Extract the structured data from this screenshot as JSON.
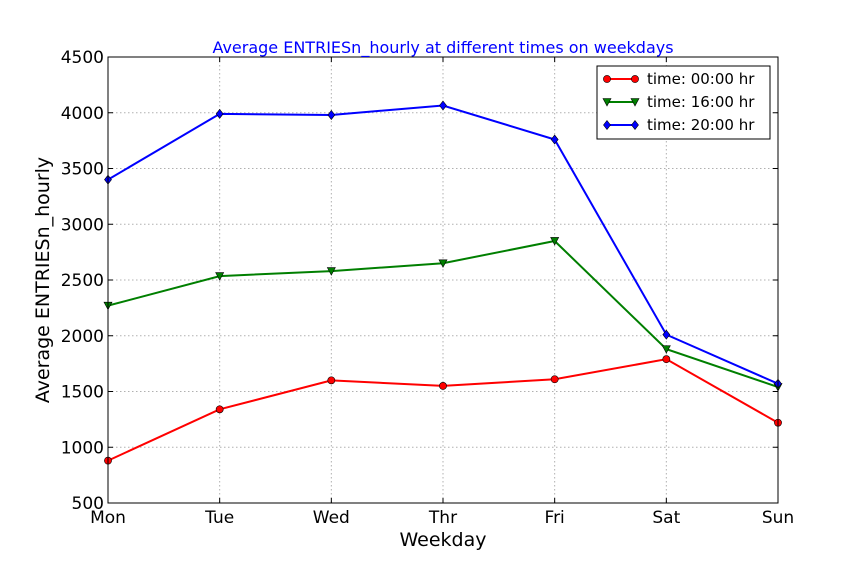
{
  "chart_data": {
    "type": "line",
    "title": "Average ENTRIESn_hourly at different times on weekdays",
    "title_color": "#0000ff",
    "xlabel": "Weekday",
    "ylabel": "Average ENTRIESn_hourly",
    "categories": [
      "Mon",
      "Tue",
      "Wed",
      "Thr",
      "Fri",
      "Sat",
      "Sun"
    ],
    "ylim": [
      500,
      4500
    ],
    "yticks": [
      "500",
      "1000",
      "1500",
      "2000",
      "2500",
      "3000",
      "3500",
      "4000",
      "4500"
    ],
    "ytick_values": [
      500,
      1000,
      1500,
      2000,
      2500,
      3000,
      3500,
      4000,
      4500
    ],
    "grid": true,
    "legend_position": "top-right",
    "series": [
      {
        "name": "time: 00:00 hr",
        "color": "#ff0000",
        "marker": "circle",
        "values": [
          880,
          1340,
          1600,
          1550,
          1610,
          1790,
          1220
        ]
      },
      {
        "name": "time: 16:00 hr",
        "color": "#007f00",
        "marker": "triangle-down",
        "values": [
          2270,
          2535,
          2580,
          2650,
          2850,
          1880,
          1540
        ]
      },
      {
        "name": "time: 20:00 hr",
        "color": "#0000ff",
        "marker": "diamond",
        "values": [
          3400,
          3990,
          3980,
          4065,
          3760,
          2010,
          1570
        ]
      }
    ]
  }
}
